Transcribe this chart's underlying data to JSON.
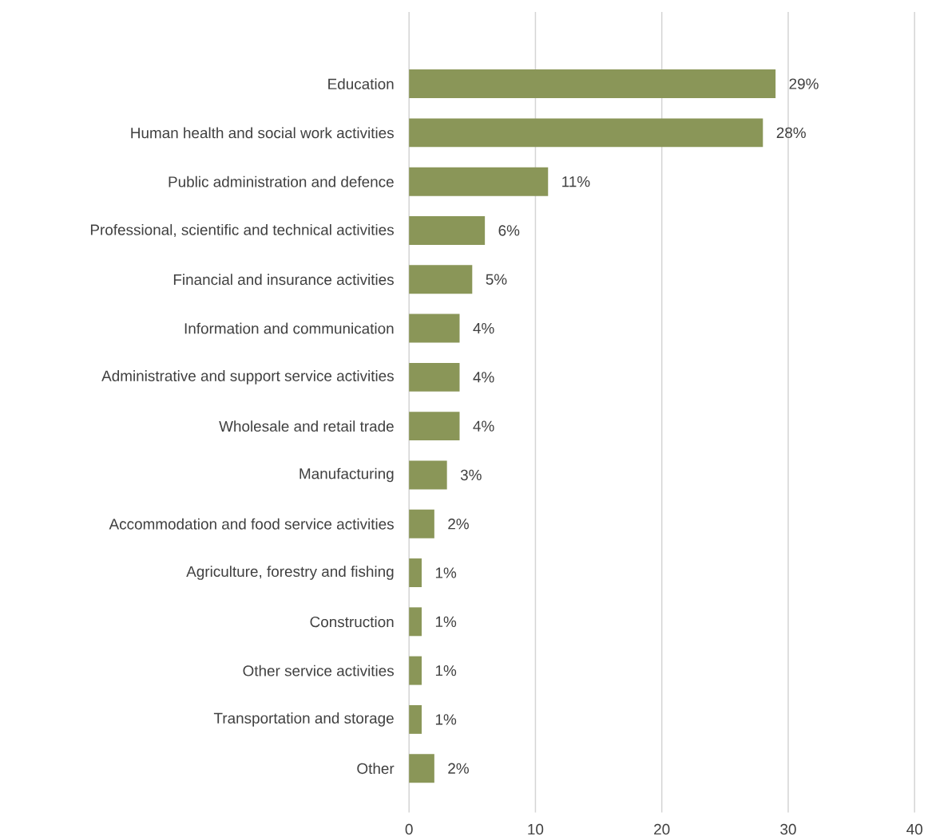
{
  "chart_data": {
    "type": "bar",
    "orientation": "horizontal",
    "categories": [
      "Education",
      "Human health and social work activities",
      "Public administration and defence",
      "Professional, scientific and technical activities",
      "Financial and insurance activities",
      "Information and communication",
      "Administrative and support service activities",
      "Wholesale and retail trade",
      "Manufacturing",
      "Accommodation and food service activities",
      "Agriculture, forestry and fishing",
      "Construction",
      "Other service activities",
      "Transportation and storage",
      "Other"
    ],
    "values": [
      29,
      28,
      11,
      6,
      5,
      4,
      4,
      4,
      3,
      2,
      1,
      1,
      1,
      1,
      2
    ],
    "value_labels": [
      "29%",
      "28%",
      "11%",
      "6%",
      "5%",
      "4%",
      "4%",
      "4%",
      "3%",
      "2%",
      "1%",
      "1%",
      "1%",
      "1%",
      "2%"
    ],
    "color": "#8a9658",
    "xlim": [
      0,
      40
    ],
    "xticks": [
      0,
      10,
      20,
      30,
      40
    ],
    "grid": "x"
  }
}
